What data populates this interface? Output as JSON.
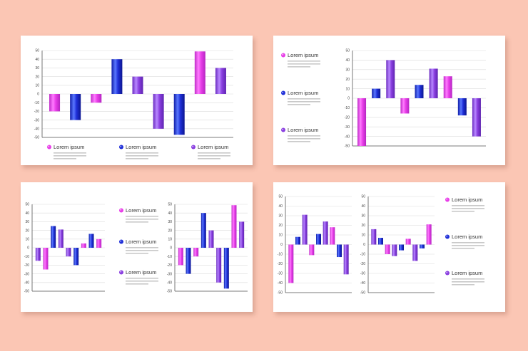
{
  "colors": {
    "background": "#fbc6b4",
    "card": "#ffffff",
    "pink": "#e83ee8",
    "blue": "#1f2fd8",
    "purple": "#8a3fe0",
    "grid": "#dcdcdc",
    "axis": "#555555"
  },
  "chart_data": [
    {
      "type": "bar",
      "title": "",
      "xlabel": "",
      "ylabel": "",
      "ylim": [
        -50,
        50
      ],
      "yticks": [
        50,
        40,
        30,
        20,
        10,
        0,
        -10,
        -20,
        -30,
        -40,
        -50
      ],
      "grid": true,
      "legend_position": "bottom",
      "bars": [
        {
          "value": -20,
          "color": "pink"
        },
        {
          "value": -30,
          "color": "blue"
        },
        {
          "value": -10,
          "color": "pink"
        },
        {
          "value": 40,
          "color": "blue"
        },
        {
          "value": 20,
          "color": "purple"
        },
        {
          "value": -40,
          "color": "purple"
        },
        {
          "value": -47,
          "color": "blue"
        },
        {
          "value": 49,
          "color": "pink"
        },
        {
          "value": 30,
          "color": "purple"
        }
      ],
      "legend": [
        {
          "label": "Lorem ipsum",
          "color": "pink"
        },
        {
          "label": "Lorem ipsum",
          "color": "blue"
        },
        {
          "label": "Lorem ipsum",
          "color": "purple"
        }
      ]
    },
    {
      "type": "bar",
      "title": "",
      "ylim": [
        -50,
        50
      ],
      "yticks": [
        50,
        40,
        30,
        20,
        10,
        0,
        -10,
        -20,
        -30,
        -40,
        -50
      ],
      "grid": true,
      "legend_position": "left",
      "bars": [
        {
          "value": -50,
          "color": "pink"
        },
        {
          "value": 10,
          "color": "blue"
        },
        {
          "value": 40,
          "color": "purple"
        },
        {
          "value": -16,
          "color": "pink"
        },
        {
          "value": 14,
          "color": "blue"
        },
        {
          "value": 31,
          "color": "purple"
        },
        {
          "value": 23,
          "color": "pink"
        },
        {
          "value": -18,
          "color": "blue"
        },
        {
          "value": -40,
          "color": "purple"
        }
      ],
      "legend": [
        {
          "label": "Lorem ipsum",
          "color": "pink"
        },
        {
          "label": "Lorem ipsum",
          "color": "blue"
        },
        {
          "label": "Lorem ipsum",
          "color": "purple"
        }
      ]
    },
    {
      "type": "bar",
      "title": "",
      "ylim": [
        -50,
        50
      ],
      "yticks": [
        50,
        40,
        30,
        20,
        10,
        0,
        -10,
        -20,
        -30,
        -40,
        -50
      ],
      "grid": true,
      "bars": [
        {
          "value": -15,
          "color": "purple"
        },
        {
          "value": -25,
          "color": "pink"
        },
        {
          "value": 25,
          "color": "blue"
        },
        {
          "value": 21,
          "color": "purple"
        },
        {
          "value": -10,
          "color": "purple"
        },
        {
          "value": -20,
          "color": "blue"
        },
        {
          "value": 5,
          "color": "pink"
        },
        {
          "value": 16,
          "color": "blue"
        },
        {
          "value": 10,
          "color": "pink"
        }
      ]
    },
    {
      "type": "bar",
      "title": "",
      "ylim": [
        -50,
        50
      ],
      "yticks": [
        50,
        40,
        30,
        20,
        10,
        0,
        -10,
        -20,
        -30,
        -40,
        -50
      ],
      "grid": true,
      "legend_position": "left",
      "bars": [
        {
          "value": -20,
          "color": "pink"
        },
        {
          "value": -30,
          "color": "blue"
        },
        {
          "value": -10,
          "color": "pink"
        },
        {
          "value": 40,
          "color": "blue"
        },
        {
          "value": 20,
          "color": "purple"
        },
        {
          "value": -40,
          "color": "purple"
        },
        {
          "value": -47,
          "color": "blue"
        },
        {
          "value": 49,
          "color": "pink"
        },
        {
          "value": 30,
          "color": "purple"
        }
      ],
      "legend": [
        {
          "label": "Lorem ipsum",
          "color": "pink"
        },
        {
          "label": "Lorem ipsum",
          "color": "blue"
        },
        {
          "label": "Lorem ipsum",
          "color": "purple"
        }
      ]
    },
    {
      "type": "bar",
      "title": "",
      "ylim": [
        -50,
        50
      ],
      "yticks": [
        50,
        40,
        30,
        20,
        10,
        0,
        -10,
        -20,
        -30,
        -40,
        -50
      ],
      "grid": true,
      "bars": [
        {
          "value": -40,
          "color": "pink"
        },
        {
          "value": 8,
          "color": "blue"
        },
        {
          "value": 31,
          "color": "purple"
        },
        {
          "value": -11,
          "color": "pink"
        },
        {
          "value": 11,
          "color": "blue"
        },
        {
          "value": 24,
          "color": "purple"
        },
        {
          "value": 18,
          "color": "pink"
        },
        {
          "value": -13,
          "color": "blue"
        },
        {
          "value": -31,
          "color": "purple"
        }
      ]
    },
    {
      "type": "bar",
      "title": "",
      "ylim": [
        -50,
        50
      ],
      "yticks": [
        50,
        40,
        30,
        20,
        10,
        0,
        -10,
        -20,
        -30,
        -40,
        -50
      ],
      "grid": true,
      "legend_position": "right",
      "bars": [
        {
          "value": 16,
          "color": "purple"
        },
        {
          "value": 7,
          "color": "blue"
        },
        {
          "value": -10,
          "color": "pink"
        },
        {
          "value": -12,
          "color": "purple"
        },
        {
          "value": -6,
          "color": "blue"
        },
        {
          "value": 6,
          "color": "pink"
        },
        {
          "value": -17,
          "color": "purple"
        },
        {
          "value": -4,
          "color": "blue"
        },
        {
          "value": 21,
          "color": "pink"
        }
      ],
      "legend": [
        {
          "label": "Lorem ipsum",
          "color": "pink"
        },
        {
          "label": "Lorem ipsum",
          "color": "blue"
        },
        {
          "label": "Lorem ipsum",
          "color": "purple"
        }
      ]
    }
  ]
}
